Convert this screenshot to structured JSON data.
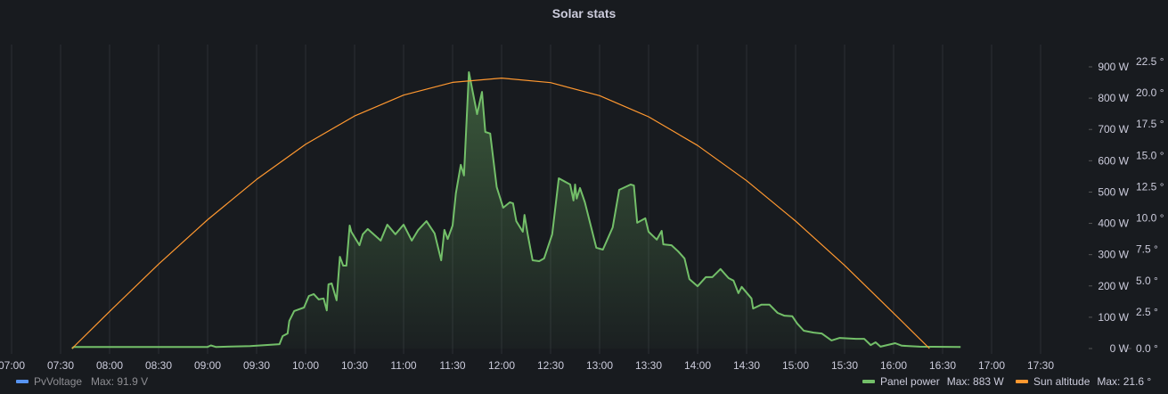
{
  "panel": {
    "title": "Solar stats"
  },
  "legend": [
    {
      "name": "PvVoltage",
      "stat": "Max: 91.9 V",
      "color": "#5794f2",
      "hidden": true
    },
    {
      "name": "Panel power",
      "stat": "Max: 883 W",
      "color": "#73bf69",
      "hidden": false
    },
    {
      "name": "Sun altitude",
      "stat": "Max: 21.6 °",
      "color": "#ff9830",
      "hidden": false
    }
  ],
  "chart_data": {
    "type": "line",
    "title": "Solar stats",
    "x_ticks": [
      "07:00",
      "07:30",
      "08:00",
      "08:30",
      "09:00",
      "09:30",
      "10:00",
      "10:30",
      "11:00",
      "11:30",
      "12:00",
      "12:30",
      "13:00",
      "13:30",
      "14:00",
      "14:30",
      "15:00",
      "15:30",
      "16:00",
      "16:30",
      "17:00",
      "17:30"
    ],
    "xlim": [
      "07:00",
      "17:30"
    ],
    "y_left": {
      "unit": "W",
      "range": [
        0,
        900
      ],
      "ticks": [
        "0 W",
        "100 W",
        "200 W",
        "300 W",
        "400 W",
        "500 W",
        "600 W",
        "700 W",
        "800 W",
        "900 W"
      ]
    },
    "y_right": {
      "unit": "°",
      "range": [
        0,
        22.5
      ],
      "ticks": [
        "0.0 °",
        "2.5 °",
        "5.0 °",
        "7.5 °",
        "10.0 °",
        "12.5 °",
        "15.0 °",
        "17.5 °",
        "20.0 °",
        "22.5 °"
      ]
    },
    "grid": "vertical",
    "legend_position": "bottom",
    "series": [
      {
        "name": "Panel power",
        "axis": "left",
        "color": "#73bf69",
        "fill": true,
        "points": [
          [
            "07:37",
            0
          ],
          [
            "07:38",
            5
          ],
          [
            "09:00",
            5
          ],
          [
            "09:02",
            10
          ],
          [
            "09:05",
            5
          ],
          [
            "09:26",
            8
          ],
          [
            "09:44",
            14
          ],
          [
            "09:46",
            40
          ],
          [
            "09:49",
            48
          ],
          [
            "09:50",
            88
          ],
          [
            "09:53",
            120
          ],
          [
            "09:59",
            131
          ],
          [
            "10:02",
            168
          ],
          [
            "10:05",
            174
          ],
          [
            "10:08",
            157
          ],
          [
            "10:11",
            160
          ],
          [
            "10:13",
            122
          ],
          [
            "10:14",
            205
          ],
          [
            "10:16",
            208
          ],
          [
            "10:19",
            154
          ],
          [
            "10:21",
            293
          ],
          [
            "10:23",
            265
          ],
          [
            "10:25",
            265
          ],
          [
            "10:27",
            393
          ],
          [
            "10:28",
            373
          ],
          [
            "10:33",
            330
          ],
          [
            "10:35",
            365
          ],
          [
            "10:38",
            382
          ],
          [
            "10:41",
            368
          ],
          [
            "10:46",
            345
          ],
          [
            "10:50",
            396
          ],
          [
            "10:55",
            365
          ],
          [
            "11:00",
            396
          ],
          [
            "11:05",
            345
          ],
          [
            "11:09",
            379
          ],
          [
            "11:14",
            407
          ],
          [
            "11:19",
            368
          ],
          [
            "11:23",
            282
          ],
          [
            "11:25",
            379
          ],
          [
            "11:27",
            350
          ],
          [
            "11:30",
            393
          ],
          [
            "11:32",
            496
          ],
          [
            "11:35",
            587
          ],
          [
            "11:37",
            553
          ],
          [
            "11:40",
            883
          ],
          [
            "11:45",
            749
          ],
          [
            "11:48",
            820
          ],
          [
            "11:50",
            692
          ],
          [
            "11:53",
            687
          ],
          [
            "11:57",
            516
          ],
          [
            "12:01",
            450
          ],
          [
            "12:05",
            467
          ],
          [
            "12:07",
            464
          ],
          [
            "12:09",
            407
          ],
          [
            "12:13",
            373
          ],
          [
            "12:14",
            427
          ],
          [
            "12:16",
            365
          ],
          [
            "12:19",
            282
          ],
          [
            "12:23",
            279
          ],
          [
            "12:26",
            288
          ],
          [
            "12:31",
            365
          ],
          [
            "12:35",
            544
          ],
          [
            "12:42",
            524
          ],
          [
            "12:44",
            473
          ],
          [
            "12:45",
            524
          ],
          [
            "12:46",
            479
          ],
          [
            "12:48",
            513
          ],
          [
            "12:51",
            467
          ],
          [
            "12:58",
            322
          ],
          [
            "13:02",
            316
          ],
          [
            "13:08",
            387
          ],
          [
            "13:12",
            507
          ],
          [
            "13:19",
            524
          ],
          [
            "13:21",
            521
          ],
          [
            "13:23",
            402
          ],
          [
            "13:28",
            416
          ],
          [
            "13:30",
            373
          ],
          [
            "13:35",
            348
          ],
          [
            "13:38",
            376
          ],
          [
            "13:39",
            333
          ],
          [
            "13:44",
            330
          ],
          [
            "13:48",
            311
          ],
          [
            "13:52",
            288
          ],
          [
            "13:55",
            222
          ],
          [
            "14:00",
            199
          ],
          [
            "14:05",
            228
          ],
          [
            "14:09",
            228
          ],
          [
            "14:14",
            254
          ],
          [
            "14:19",
            225
          ],
          [
            "14:22",
            217
          ],
          [
            "14:25",
            177
          ],
          [
            "14:27",
            197
          ],
          [
            "14:33",
            160
          ],
          [
            "14:34",
            128
          ],
          [
            "14:39",
            140
          ],
          [
            "14:44",
            140
          ],
          [
            "14:49",
            114
          ],
          [
            "14:53",
            105
          ],
          [
            "14:58",
            103
          ],
          [
            "15:01",
            80
          ],
          [
            "15:05",
            57
          ],
          [
            "15:11",
            51
          ],
          [
            "15:16",
            48
          ],
          [
            "15:22",
            26
          ],
          [
            "15:27",
            34
          ],
          [
            "15:37",
            31
          ],
          [
            "15:42",
            31
          ],
          [
            "15:46",
            11
          ],
          [
            "15:49",
            20
          ],
          [
            "15:52",
            6
          ],
          [
            "16:01",
            17
          ],
          [
            "16:05",
            9
          ],
          [
            "16:16",
            6
          ],
          [
            "16:41",
            5
          ]
        ]
      },
      {
        "name": "Sun altitude",
        "axis": "right",
        "color": "#ff9830",
        "fill": false,
        "points": [
          [
            "07:37",
            0
          ],
          [
            "08:00",
            2.96
          ],
          [
            "08:30",
            6.74
          ],
          [
            "09:00",
            10.29
          ],
          [
            "09:30",
            13.51
          ],
          [
            "10:00",
            16.31
          ],
          [
            "10:30",
            18.58
          ],
          [
            "11:00",
            20.24
          ],
          [
            "11:30",
            21.26
          ],
          [
            "12:00",
            21.6
          ],
          [
            "12:30",
            21.24
          ],
          [
            "13:00",
            20.2
          ],
          [
            "13:30",
            18.51
          ],
          [
            "14:00",
            16.22
          ],
          [
            "14:30",
            13.41
          ],
          [
            "15:00",
            10.18
          ],
          [
            "15:30",
            6.64
          ],
          [
            "16:00",
            2.83
          ],
          [
            "16:22",
            0
          ]
        ]
      }
    ]
  }
}
